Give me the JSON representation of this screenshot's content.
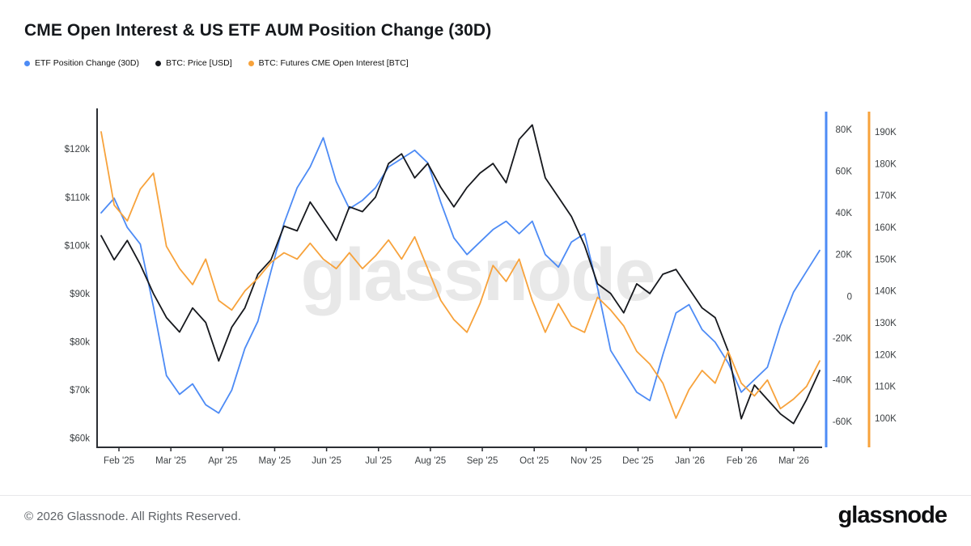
{
  "header": {
    "title": "CME Open Interest & US ETF AUM Position Change (30D)"
  },
  "legend": [
    {
      "label": "ETF Position Change (30D)",
      "color": "#4D8BF5"
    },
    {
      "label": "BTC: Price [USD]",
      "color": "#16181D"
    },
    {
      "label": "BTC: Futures CME Open Interest [BTC]",
      "color": "#F7A23B"
    }
  ],
  "watermark": "glassnode",
  "footer": {
    "copyright": "© 2026 Glassnode. All Rights Reserved.",
    "logo_text": "glassnode"
  },
  "chart_data": {
    "type": "line",
    "title": "CME Open Interest & US ETF AUM Position Change (30D)",
    "x_unit": "weekly samples, Feb 2025 – mid Mar 2026",
    "x_tick_labels": [
      "Feb '25",
      "Mar '25",
      "Apr '25",
      "May '25",
      "Jun '25",
      "Jul '25",
      "Aug '25",
      "Sep '25",
      "Oct '25",
      "Nov '25",
      "Dec '25",
      "Jan '26",
      "Feb '26",
      "Mar '26"
    ],
    "grid": false,
    "legend_position": "top-left",
    "axes": {
      "price": {
        "side": "left",
        "unit": "USD",
        "domain": [
          60000,
          127000
        ],
        "ticks": [
          {
            "value": 120000,
            "label": "$120k"
          },
          {
            "value": 110000,
            "label": "$110k"
          },
          {
            "value": 100000,
            "label": "$100k"
          },
          {
            "value": 90000,
            "label": "$90k"
          },
          {
            "value": 80000,
            "label": "$80k"
          },
          {
            "value": 70000,
            "label": "$70k"
          },
          {
            "value": 60000,
            "label": "$60k"
          }
        ]
      },
      "etf": {
        "side": "right-inner",
        "unit": "BTC",
        "color": "#4D8BF5",
        "domain": [
          -65000,
          83000
        ],
        "ticks": [
          {
            "value": 80000,
            "label": "80K"
          },
          {
            "value": 60000,
            "label": "60K"
          },
          {
            "value": 40000,
            "label": "40K"
          },
          {
            "value": 20000,
            "label": "20K"
          },
          {
            "value": 0,
            "label": "0"
          },
          {
            "value": -20000,
            "label": "-20K"
          },
          {
            "value": -40000,
            "label": "-40K"
          },
          {
            "value": -60000,
            "label": "-60K"
          }
        ]
      },
      "oi": {
        "side": "right-outer",
        "unit": "BTC",
        "color": "#F7A23B",
        "domain": [
          98000,
          192000
        ],
        "ticks": [
          {
            "value": 190000,
            "label": "190K"
          },
          {
            "value": 180000,
            "label": "180K"
          },
          {
            "value": 170000,
            "label": "170K"
          },
          {
            "value": 160000,
            "label": "160K"
          },
          {
            "value": 150000,
            "label": "150K"
          },
          {
            "value": 140000,
            "label": "140K"
          },
          {
            "value": 130000,
            "label": "130K"
          },
          {
            "value": 120000,
            "label": "120K"
          },
          {
            "value": 110000,
            "label": "110K"
          },
          {
            "value": 100000,
            "label": "100K"
          }
        ]
      }
    },
    "series": [
      {
        "id": "etf-position-change-30d",
        "name": "ETF Position Change (30D)",
        "axis": "etf",
        "color": "#4D8BF5",
        "values": [
          40000,
          47000,
          33000,
          25000,
          -5000,
          -38000,
          -47000,
          -42000,
          -52000,
          -56000,
          -45000,
          -25000,
          -12000,
          12000,
          35000,
          52000,
          62000,
          76000,
          55000,
          42000,
          46000,
          52000,
          62000,
          66000,
          70000,
          64000,
          45000,
          28000,
          20000,
          26000,
          32000,
          36000,
          30000,
          36000,
          20000,
          14000,
          26000,
          30000,
          4000,
          -26000,
          -36000,
          -46000,
          -50000,
          -28000,
          -8000,
          -4000,
          -16000,
          -22000,
          -32000,
          -46000,
          -40000,
          -34000,
          -14000,
          2000,
          12000,
          22000
        ]
      },
      {
        "id": "btc-price-usd",
        "name": "BTC: Price [USD]",
        "axis": "price",
        "color": "#16181D",
        "values": [
          102000,
          97000,
          101000,
          96000,
          90000,
          85000,
          82000,
          87000,
          84000,
          76000,
          83000,
          87000,
          94000,
          97000,
          104000,
          103000,
          109000,
          105000,
          101000,
          108000,
          107000,
          110000,
          117000,
          119000,
          114000,
          117000,
          112000,
          108000,
          112000,
          115000,
          117000,
          113000,
          122000,
          125000,
          114000,
          110000,
          106000,
          100000,
          92000,
          90000,
          86000,
          92000,
          90000,
          94000,
          95000,
          91000,
          87000,
          85000,
          78000,
          64000,
          71000,
          68000,
          65000,
          63000,
          68000,
          74000
        ]
      },
      {
        "id": "cme-futures-open-interest",
        "name": "BTC: Futures CME Open Interest [BTC]",
        "axis": "oi",
        "color": "#F7A23B",
        "values": [
          190000,
          167000,
          162000,
          172000,
          177000,
          154000,
          147000,
          142000,
          150000,
          137000,
          134000,
          140000,
          144000,
          149000,
          152000,
          150000,
          155000,
          150000,
          147000,
          152000,
          147000,
          151000,
          156000,
          150000,
          157000,
          147000,
          137000,
          131000,
          127000,
          136000,
          148000,
          143000,
          150000,
          137000,
          127000,
          136000,
          129000,
          127000,
          138000,
          134000,
          129000,
          121000,
          117000,
          111000,
          100000,
          109000,
          115000,
          111000,
          121000,
          111000,
          107000,
          112000,
          103000,
          106000,
          110000,
          118000
        ]
      }
    ]
  }
}
